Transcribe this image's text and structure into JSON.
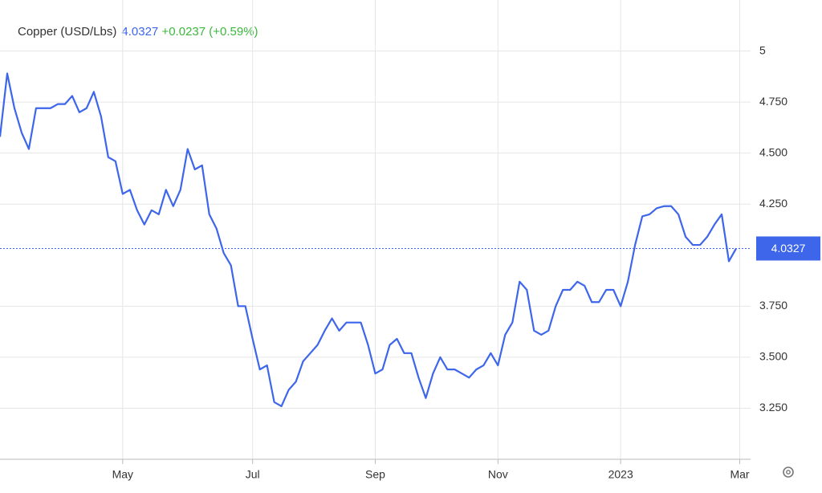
{
  "chart_data": {
    "type": "line",
    "title": "Copper (USD/Lbs)",
    "last_price": 4.0327,
    "change": "+0.0237",
    "change_pct": "(+0.59%)",
    "color": "#3d66ea",
    "values": [
      4.58,
      4.89,
      4.72,
      4.6,
      4.52,
      4.72,
      4.72,
      4.72,
      4.74,
      4.74,
      4.78,
      4.7,
      4.72,
      4.8,
      4.68,
      4.48,
      4.46,
      4.3,
      4.32,
      4.22,
      4.15,
      4.22,
      4.2,
      4.32,
      4.24,
      4.32,
      4.52,
      4.42,
      4.44,
      4.2,
      4.13,
      4.01,
      3.95,
      3.75,
      3.75,
      3.59,
      3.44,
      3.46,
      3.28,
      3.26,
      3.34,
      3.38,
      3.48,
      3.52,
      3.56,
      3.63,
      3.69,
      3.63,
      3.67,
      3.67,
      3.67,
      3.56,
      3.42,
      3.44,
      3.56,
      3.59,
      3.52,
      3.52,
      3.4,
      3.3,
      3.42,
      3.5,
      3.44,
      3.44,
      3.42,
      3.4,
      3.44,
      3.46,
      3.52,
      3.46,
      3.61,
      3.67,
      3.87,
      3.83,
      3.63,
      3.61,
      3.63,
      3.75,
      3.83,
      3.83,
      3.87,
      3.85,
      3.77,
      3.77,
      3.83,
      3.83,
      3.75,
      3.87,
      4.05,
      4.19,
      4.2,
      4.23,
      4.24,
      4.24,
      4.2,
      4.09,
      4.05,
      4.05,
      4.09,
      4.15,
      4.2,
      3.97,
      4.0327
    ],
    "xlim": [
      0,
      104
    ],
    "xticks": [
      {
        "value": 17,
        "label": "May"
      },
      {
        "value": 35,
        "label": "Jul"
      },
      {
        "value": 52,
        "label": "Sep"
      },
      {
        "value": 69,
        "label": "Nov"
      },
      {
        "value": 86,
        "label": "2023"
      },
      {
        "value": 102.5,
        "label": "Mar"
      }
    ],
    "ylim": [
      3.0,
      5.25
    ],
    "yticks": [
      5,
      {
        "value": 4.75,
        "label": "4.750"
      },
      {
        "value": 4.5,
        "label": "4.500"
      },
      {
        "value": 4.25,
        "label": "4.250"
      },
      {
        "value": 3.75,
        "label": "3.750"
      },
      {
        "value": 3.5,
        "label": "3.500"
      },
      {
        "value": 3.25,
        "label": "3.250"
      }
    ],
    "grid": true
  }
}
